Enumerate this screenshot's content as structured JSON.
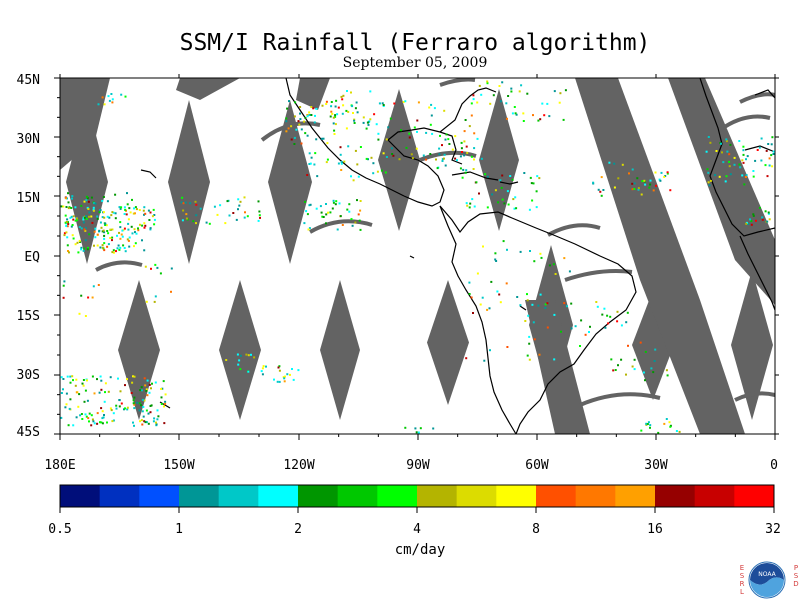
{
  "title": "SSM/I Rainfall (Ferraro algorithm)",
  "subtitle": "September 05, 2009",
  "lat_labels": [
    "45N",
    "30N",
    "15N",
    "EQ",
    "15S",
    "30S",
    "45S"
  ],
  "lon_labels": [
    "180E",
    "150W",
    "120W",
    "90W",
    "60W",
    "30W",
    "0"
  ],
  "colorbar": {
    "colors": [
      "#000e7a",
      "#0030c0",
      "#0050ff",
      "#009696",
      "#00c8c8",
      "#00ffff",
      "#009600",
      "#00c800",
      "#00ff00",
      "#b4b400",
      "#dcdc00",
      "#ffff00",
      "#ff5000",
      "#ff7800",
      "#ffa000",
      "#960000",
      "#c80000",
      "#ff0000"
    ],
    "tick_labels": [
      "0.5",
      "1",
      "2",
      "4",
      "8",
      "16",
      "32"
    ],
    "units": "cm/day"
  },
  "colors": {
    "no_data": "#636363",
    "coast": "#000000",
    "frame": "#000000"
  },
  "logo": {
    "name": "noaa-logo",
    "side_left": "ESRL",
    "side_right": "PSD"
  },
  "map_extent": {
    "lon_start": "180E",
    "lon_end": "0",
    "lat_top": "45N",
    "lat_bottom": "45S"
  }
}
